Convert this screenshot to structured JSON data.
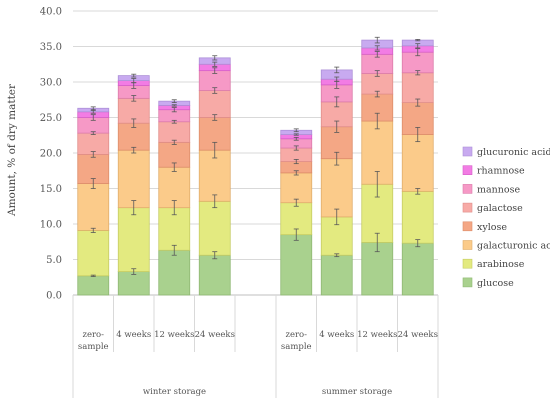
{
  "chart_data": {
    "type": "bar",
    "stacked": true,
    "title": "",
    "xlabel": "",
    "ylabel": "Amount, % of dry matter",
    "ylim": [
      0,
      40
    ],
    "yticks": [
      "0.0",
      "5.0",
      "10.0",
      "15.0",
      "20.0",
      "25.0",
      "30.0",
      "35.0",
      "40.0"
    ],
    "grid": true,
    "legend_position": "right",
    "groups": [
      {
        "label": "winter storage",
        "categories": [
          {
            "lines": [
              "zero-",
              "sample"
            ]
          },
          {
            "lines": [
              "4 weeks"
            ]
          },
          {
            "lines": [
              "12 weeks"
            ]
          },
          {
            "lines": [
              "24 weeks"
            ]
          }
        ]
      },
      {
        "label": "summer storage",
        "categories": [
          {
            "lines": [
              "zero-",
              "sample"
            ]
          },
          {
            "lines": [
              "4 weeks"
            ]
          },
          {
            "lines": [
              "12 weeks"
            ]
          },
          {
            "lines": [
              "24 weeks"
            ]
          }
        ]
      }
    ],
    "series": [
      {
        "name": "glucose",
        "color": "#a9d18e",
        "edge": "#8fb873",
        "values": [
          2.7,
          3.3,
          6.3,
          5.6,
          8.5,
          5.6,
          7.4,
          7.3
        ],
        "errors": [
          0.1,
          0.4,
          0.7,
          0.5,
          0.8,
          0.2,
          1.3,
          0.5
        ]
      },
      {
        "name": "arabinose",
        "color": "#e3ea80",
        "edge": "#c6cc63",
        "values": [
          6.4,
          9.0,
          6.0,
          7.6,
          4.5,
          5.4,
          8.2,
          7.3
        ],
        "errors": [
          0.3,
          1.0,
          1.0,
          0.9,
          0.5,
          1.1,
          1.8,
          0.4
        ]
      },
      {
        "name": "galacturonic acid",
        "color": "#fbcb8a",
        "edge": "#e0ad6c",
        "values": [
          6.6,
          8.1,
          5.7,
          7.2,
          4.2,
          8.2,
          8.9,
          8.0
        ],
        "errors": [
          0.7,
          0.4,
          0.6,
          1.1,
          0.3,
          0.9,
          1.1,
          1.0
        ]
      },
      {
        "name": "xylose",
        "color": "#f4a785",
        "edge": "#dd8c6a",
        "values": [
          4.1,
          3.8,
          3.5,
          4.6,
          1.6,
          4.5,
          3.8,
          4.5
        ],
        "errors": [
          0.4,
          0.6,
          0.3,
          0.4,
          0.3,
          0.8,
          0.4,
          0.5
        ]
      },
      {
        "name": "galactose",
        "color": "#f7aaa6",
        "edge": "#e08e8a",
        "values": [
          3.0,
          3.5,
          2.9,
          3.8,
          1.9,
          3.5,
          2.9,
          4.2
        ],
        "errors": [
          0.2,
          0.4,
          0.2,
          0.4,
          0.3,
          0.7,
          0.4,
          0.3
        ]
      },
      {
        "name": "mannose",
        "color": "#f699c6",
        "edge": "#dc7cab",
        "values": [
          2.2,
          1.8,
          1.7,
          2.8,
          1.3,
          2.4,
          2.7,
          2.9
        ],
        "errors": [
          0.4,
          0.4,
          0.3,
          0.4,
          0.2,
          0.5,
          0.4,
          0.5
        ]
      },
      {
        "name": "rhamnose",
        "color": "#f27ce4",
        "edge": "#d65fc8",
        "values": [
          0.8,
          0.7,
          0.6,
          0.9,
          0.6,
          0.8,
          0.9,
          0.9
        ],
        "errors": [
          0.2,
          0.3,
          0.1,
          0.3,
          0.1,
          0.3,
          0.3,
          0.3
        ]
      },
      {
        "name": "glucuronic acid",
        "color": "#c8aaf0",
        "edge": "#ad90d8",
        "values": [
          0.5,
          0.7,
          0.6,
          0.9,
          0.6,
          1.3,
          1.1,
          0.8
        ],
        "errors": [
          0.2,
          0.2,
          0.2,
          0.3,
          0.2,
          0.4,
          0.4,
          0.1
        ]
      }
    ]
  }
}
